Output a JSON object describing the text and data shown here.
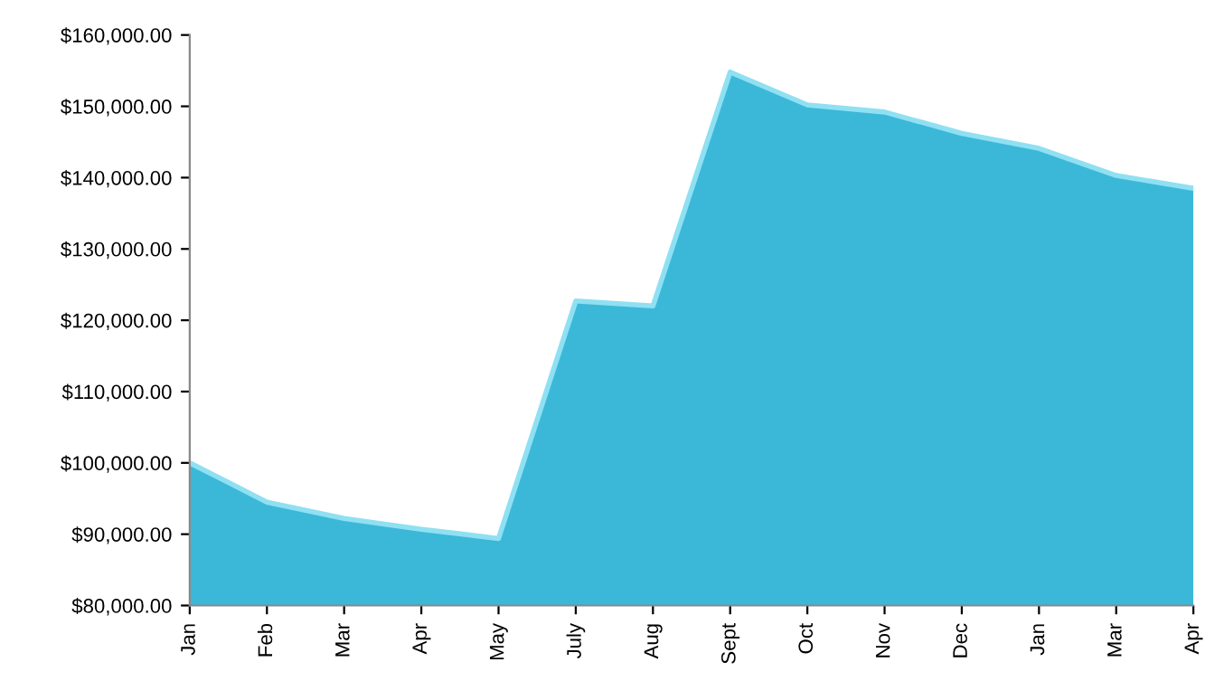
{
  "chart_data": {
    "type": "area",
    "categories": [
      "Jan",
      "Feb",
      "Mar",
      "Apr",
      "May",
      "July",
      "Aug",
      "Sept",
      "Oct",
      "Nov",
      "Dec",
      "Jan",
      "Mar",
      "Apr"
    ],
    "series": [
      {
        "color": "#3bb8d8",
        "values": [
          100000,
          94500,
          92200,
          90700,
          89400,
          122700,
          122000,
          154800,
          150200,
          149200,
          146200,
          144100,
          140300,
          138500
        ]
      }
    ],
    "ylim": [
      80000,
      160000
    ],
    "yticks": [
      {
        "value": 80000,
        "label": "$80,000.00"
      },
      {
        "value": 90000,
        "label": "$90,000.00"
      },
      {
        "value": 100000,
        "label": "$100,000.00"
      },
      {
        "value": 110000,
        "label": "$110,000.00"
      },
      {
        "value": 120000,
        "label": "$120,000.00"
      },
      {
        "value": 130000,
        "label": "$130,000.00"
      },
      {
        "value": 140000,
        "label": "$140,000.00"
      },
      {
        "value": 150000,
        "label": "$150,000.00"
      },
      {
        "value": 160000,
        "label": "$160,000.00"
      }
    ],
    "grid": false,
    "legend": false
  }
}
